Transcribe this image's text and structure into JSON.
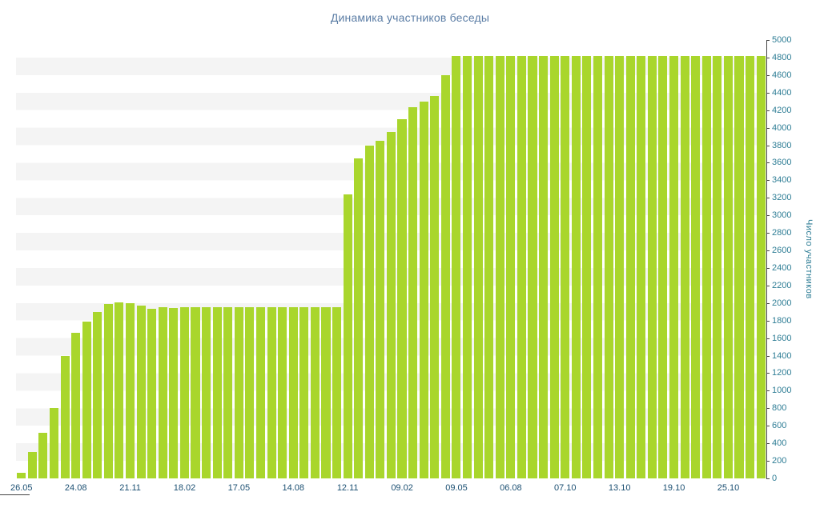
{
  "chart_data": {
    "type": "bar",
    "title": "Динамика участников беседы",
    "xlabel": "",
    "ylabel": "Число участников",
    "ylim": [
      0,
      5000
    ],
    "y_tick_step": 200,
    "y_ticks": [
      0,
      200,
      400,
      600,
      800,
      1000,
      1200,
      1400,
      1600,
      1800,
      2000,
      2200,
      2400,
      2600,
      2800,
      3000,
      3200,
      3400,
      3600,
      3800,
      4000,
      4200,
      4400,
      4600,
      4800,
      5000
    ],
    "x_tick_labels": [
      "26.05",
      "24.08",
      "21.11",
      "18.02",
      "17.05",
      "14.08",
      "12.11",
      "09.02",
      "09.05",
      "06.08",
      "07.10",
      "13.10",
      "19.10",
      "25.10"
    ],
    "x_label_every": 5,
    "grid": "striped-horizontal-bands",
    "legend": "none",
    "y_axis_position": "right",
    "values": [
      60,
      300,
      520,
      800,
      1400,
      1660,
      1790,
      1900,
      1990,
      2010,
      2000,
      1970,
      1930,
      1950,
      1945,
      1950,
      1950,
      1950,
      1950,
      1950,
      1950,
      1950,
      1950,
      1950,
      1950,
      1950,
      1950,
      1950,
      1950,
      1950,
      3240,
      3650,
      3800,
      3850,
      3950,
      4100,
      4230,
      4300,
      4360,
      4600,
      4820,
      4820,
      4820,
      4820,
      4820,
      4820,
      4820,
      4820,
      4820,
      4820,
      4820,
      4820,
      4820,
      4820,
      4820,
      4820,
      4820,
      4820,
      4820,
      4820,
      4820,
      4820,
      4820,
      4820,
      4820,
      4820,
      4820,
      4820,
      4820
    ],
    "colors": {
      "bar": "#a9d62c",
      "title": "#5b7da5",
      "y_tick_text": "#2e7d95",
      "x_tick_text": "#1b4f72",
      "axis_line": "#444444",
      "stripe": "#f4f4f4",
      "background": "#ffffff"
    }
  }
}
